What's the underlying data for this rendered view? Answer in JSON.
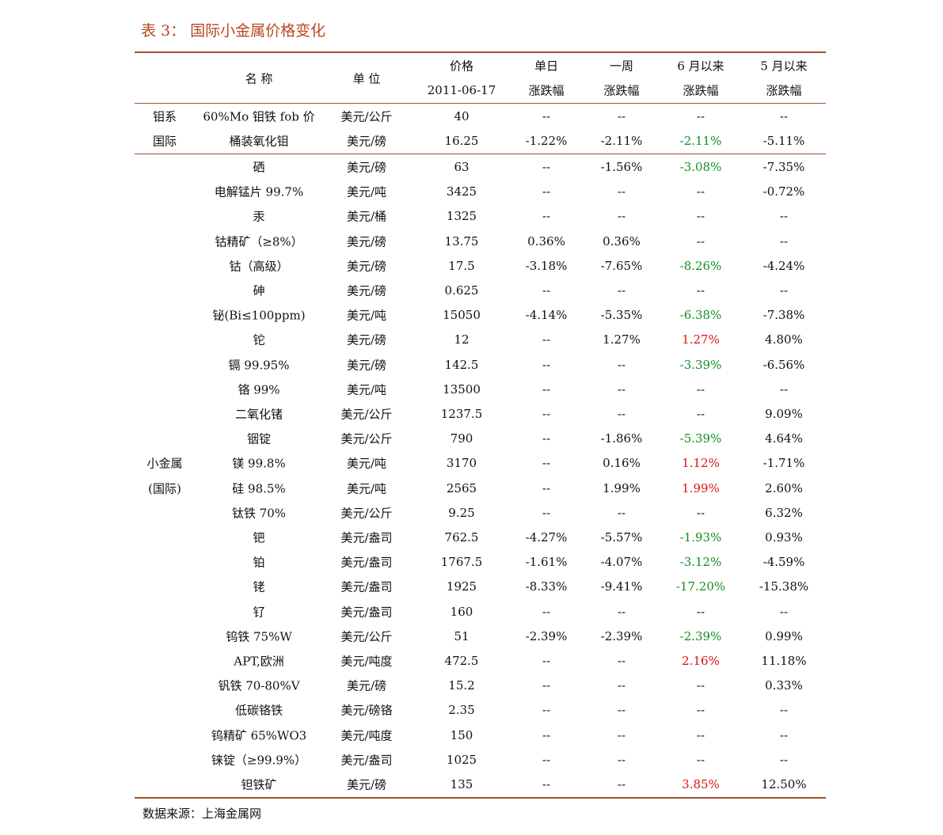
{
  "title": "表 3： 国际小金属价格变化",
  "table": {
    "header": [
      [
        "名 称"
      ],
      [
        "单 位"
      ],
      [
        "价格",
        "2011-06-17"
      ],
      [
        "单日",
        "涨跌幅"
      ],
      [
        "一周",
        "涨跌幅"
      ],
      [
        "6 月以来",
        "涨跌幅"
      ],
      [
        "5 月以来",
        "涨跌幅"
      ]
    ],
    "groups": [
      {
        "label": [
          "钼系",
          "国际"
        ],
        "rows": [
          [
            "60%Mo 钼铁 fob 价",
            "美元/公斤",
            "40",
            "--",
            "--",
            "--",
            "--"
          ],
          [
            "桶装氧化钼",
            "美元/磅",
            "16.25",
            "-1.22%",
            "-2.11%",
            "-2.11%",
            "-5.11%"
          ]
        ]
      },
      {
        "label": [
          "小金属",
          "(国际)"
        ],
        "rows": [
          [
            "硒",
            "美元/磅",
            "63",
            "--",
            "-1.56%",
            "-3.08%",
            "-7.35%"
          ],
          [
            "电解锰片 99.7%",
            "美元/吨",
            "3425",
            "--",
            "--",
            "--",
            "-0.72%"
          ],
          [
            "汞",
            "美元/桶",
            "1325",
            "--",
            "--",
            "--",
            "--"
          ],
          [
            "钴精矿（≥8%）",
            "美元/磅",
            "13.75",
            "0.36%",
            "0.36%",
            "--",
            "--"
          ],
          [
            "钴（高级）",
            "美元/磅",
            "17.5",
            "-3.18%",
            "-7.65%",
            "-8.26%",
            "-4.24%"
          ],
          [
            "砷",
            "美元/磅",
            "0.625",
            "--",
            "--",
            "--",
            "--"
          ],
          [
            "铋(Bi≤100ppm)",
            "美元/吨",
            "15050",
            "-4.14%",
            "-5.35%",
            "-6.38%",
            "-7.38%"
          ],
          [
            "铊",
            "美元/磅",
            "12",
            "--",
            "1.27%",
            "1.27%",
            "4.80%"
          ],
          [
            "镉 99.95%",
            "美元/磅",
            "142.5",
            "--",
            "--",
            "-3.39%",
            "-6.56%"
          ],
          [
            "铬 99%",
            "美元/吨",
            "13500",
            "--",
            "--",
            "--",
            "--"
          ],
          [
            "二氧化锗",
            "美元/公斤",
            "1237.5",
            "--",
            "--",
            "--",
            "9.09%"
          ],
          [
            "铟锭",
            "美元/公斤",
            "790",
            "--",
            "-1.86%",
            "-5.39%",
            "4.64%"
          ],
          [
            "镁 99.8%",
            "美元/吨",
            "3170",
            "--",
            "0.16%",
            "1.12%",
            "-1.71%"
          ],
          [
            "硅 98.5%",
            "美元/吨",
            "2565",
            "--",
            "1.99%",
            "1.99%",
            "2.60%"
          ],
          [
            "钛铁 70%",
            "美元/公斤",
            "9.25",
            "--",
            "--",
            "--",
            "6.32%"
          ],
          [
            "钯",
            "美元/盎司",
            "762.5",
            "-4.27%",
            "-5.57%",
            "-1.93%",
            "0.93%"
          ],
          [
            "铂",
            "美元/盎司",
            "1767.5",
            "-1.61%",
            "-4.07%",
            "-3.12%",
            "-4.59%"
          ],
          [
            "铑",
            "美元/盎司",
            "1925",
            "-8.33%",
            "-9.41%",
            "-17.20%",
            "-15.38%"
          ],
          [
            "钌",
            "美元/盎司",
            "160",
            "--",
            "--",
            "--",
            "--"
          ],
          [
            "钨铁 75%W",
            "美元/公斤",
            "51",
            "-2.39%",
            "-2.39%",
            "-2.39%",
            "0.99%"
          ],
          [
            "APT,欧洲",
            "美元/吨度",
            "472.5",
            "--",
            "--",
            "2.16%",
            "11.18%"
          ],
          [
            "钒铁 70-80%V",
            "美元/磅",
            "15.2",
            "--",
            "--",
            "--",
            "0.33%"
          ],
          [
            "低碳铬铁",
            "美元/磅铬",
            "2.35",
            "--",
            "--",
            "--",
            "--"
          ],
          [
            "钨精矿 65%WO3",
            "美元/吨度",
            "150",
            "--",
            "--",
            "--",
            "--"
          ],
          [
            "铼锭（≥99.9%）",
            "美元/盎司",
            "1025",
            "--",
            "--",
            "--",
            "--"
          ],
          [
            "钽铁矿",
            "美元/磅",
            "135",
            "--",
            "--",
            "3.85%",
            "12.50%"
          ]
        ]
      }
    ]
  },
  "source": "数据来源：上海金属网"
}
